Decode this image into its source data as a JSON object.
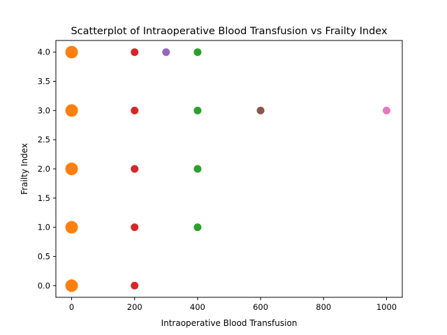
{
  "chart_data": {
    "type": "scatter",
    "title": "Scatterplot of Intraoperative Blood Transfusion vs Frailty Index",
    "xlabel": "Intraoperative Blood Transfusion",
    "ylabel": "Frailty Index",
    "xlim": [
      -50,
      1050
    ],
    "ylim": [
      -0.2,
      4.2
    ],
    "x_ticks": [
      0,
      200,
      400,
      600,
      800,
      1000
    ],
    "y_ticks": [
      0.0,
      0.5,
      1.0,
      1.5,
      2.0,
      2.5,
      3.0,
      3.5,
      4.0
    ],
    "x_tick_labels": [
      "0",
      "200",
      "400",
      "600",
      "800",
      "1000"
    ],
    "y_tick_labels": [
      "0.0",
      "0.5",
      "1.0",
      "1.5",
      "2.0",
      "2.5",
      "3.0",
      "3.5",
      "4.0"
    ],
    "grid": false,
    "series": [
      {
        "color": "#ff7f0e",
        "size": "large",
        "points": [
          [
            0,
            0
          ],
          [
            0,
            1
          ],
          [
            0,
            2
          ],
          [
            0,
            3
          ],
          [
            0,
            4
          ]
        ]
      },
      {
        "color": "#d62728",
        "size": "small",
        "points": [
          [
            200,
            0
          ],
          [
            200,
            1
          ],
          [
            200,
            2
          ],
          [
            200,
            3
          ],
          [
            200,
            4
          ]
        ]
      },
      {
        "color": "#2ca02c",
        "size": "small",
        "points": [
          [
            400,
            1
          ],
          [
            400,
            2
          ],
          [
            400,
            3
          ],
          [
            400,
            4
          ]
        ]
      },
      {
        "color": "#9467bd",
        "size": "small",
        "points": [
          [
            300,
            4
          ]
        ]
      },
      {
        "color": "#8c564b",
        "size": "small",
        "points": [
          [
            600,
            3
          ]
        ]
      },
      {
        "color": "#e377c2",
        "size": "small",
        "points": [
          [
            1000,
            3
          ]
        ]
      }
    ]
  }
}
